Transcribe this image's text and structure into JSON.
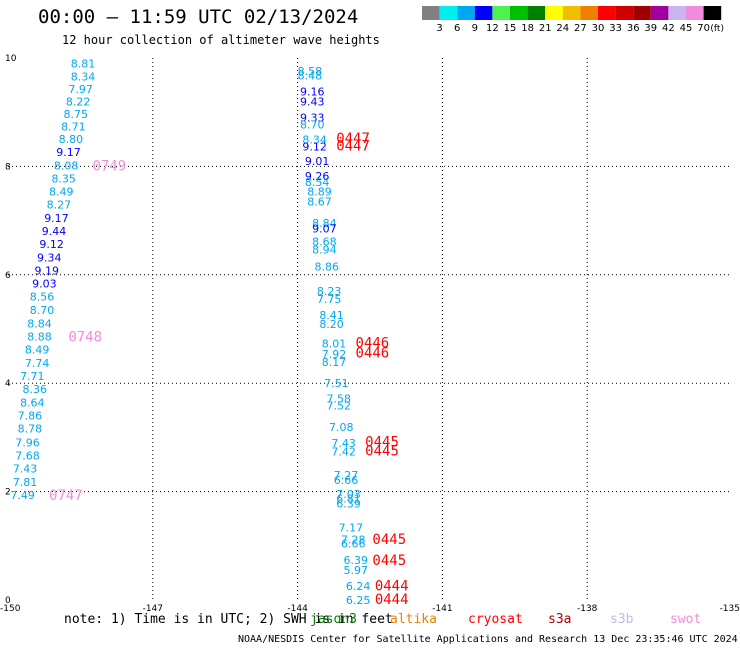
{
  "header": {
    "title": "00:00 – 11:59 UTC 02/13/2024",
    "subtitle": "12 hour collection of altimeter wave heights"
  },
  "colorbar": {
    "labels": [
      "3",
      "6",
      "9",
      "12",
      "15",
      "18",
      "21",
      "24",
      "27",
      "30",
      "33",
      "36",
      "39",
      "42",
      "45",
      "70"
    ],
    "unit": "(ft)",
    "colors": [
      "#808080",
      "#00f0f0",
      "#00a8f0",
      "#0000ff",
      "#50f050",
      "#00c000",
      "#008000",
      "#ffff00",
      "#f0c000",
      "#f08000",
      "#ff0000",
      "#d00000",
      "#a00000",
      "#a000a0",
      "#c8b4f0",
      "#f08cdc",
      "#000000"
    ]
  },
  "footer": {
    "note": "note:  1) Time is in UTC; 2) SWH is in feet",
    "credit": "NOAA/NESDIS Center for Satellite Applications and Research   13 Dec 23:35:46 UTC 2024"
  },
  "satellites": [
    {
      "name": "jason3",
      "color": "#008000",
      "x": 310
    },
    {
      "name": "altika",
      "color": "#f08000",
      "x": 390
    },
    {
      "name": "cryosat",
      "color": "#ff0000",
      "x": 468
    },
    {
      "name": "s3a",
      "color": "#b00000",
      "x": 548
    },
    {
      "name": "s3b",
      "color": "#c8b4f0",
      "x": 610
    },
    {
      "name": "swot",
      "color": "#f08cdc",
      "x": 670
    }
  ],
  "chart_data": {
    "type": "scatter",
    "xlim": [
      -150,
      -135
    ],
    "ylim": [
      0,
      10
    ],
    "xticks": [
      "-150",
      "-147",
      "-144",
      "-141",
      "-138",
      "-135"
    ],
    "yticks": [
      "0",
      "2",
      "4",
      "6",
      "8",
      "10"
    ],
    "grid": true,
    "colors": {
      "sky": "#00a8f0",
      "blue": "#0000ff"
    },
    "points": [
      {
        "x": -148.7,
        "y": 9.9,
        "label": "8.81",
        "c": "sky"
      },
      {
        "x": -148.7,
        "y": 9.66,
        "label": "8.34",
        "c": "sky"
      },
      {
        "x": -148.75,
        "y": 9.43,
        "label": "7.97",
        "c": "sky"
      },
      {
        "x": -148.8,
        "y": 9.2,
        "label": "8.22",
        "c": "sky"
      },
      {
        "x": -148.85,
        "y": 8.97,
        "label": "8.75",
        "c": "sky"
      },
      {
        "x": -148.9,
        "y": 8.74,
        "label": "8.71",
        "c": "sky"
      },
      {
        "x": -148.95,
        "y": 8.51,
        "label": "8.80",
        "c": "sky"
      },
      {
        "x": -149.0,
        "y": 8.27,
        "label": "9.17",
        "c": "blue"
      },
      {
        "x": -149.05,
        "y": 8.02,
        "label": "8.08",
        "c": "sky"
      },
      {
        "x": -149.1,
        "y": 7.78,
        "label": "8.35",
        "c": "sky"
      },
      {
        "x": -149.15,
        "y": 7.54,
        "label": "8.49",
        "c": "sky"
      },
      {
        "x": -149.2,
        "y": 7.3,
        "label": "8.27",
        "c": "sky"
      },
      {
        "x": -149.25,
        "y": 7.05,
        "label": "9.17",
        "c": "blue"
      },
      {
        "x": -149.3,
        "y": 6.81,
        "label": "9.44",
        "c": "blue"
      },
      {
        "x": -149.35,
        "y": 6.57,
        "label": "9.12",
        "c": "blue"
      },
      {
        "x": -149.4,
        "y": 6.32,
        "label": "9.34",
        "c": "blue"
      },
      {
        "x": -149.45,
        "y": 6.08,
        "label": "9.19",
        "c": "blue"
      },
      {
        "x": -149.5,
        "y": 5.84,
        "label": "9.03",
        "c": "blue"
      },
      {
        "x": -149.55,
        "y": 5.6,
        "label": "8.56",
        "c": "sky"
      },
      {
        "x": -149.55,
        "y": 5.35,
        "label": "8.70",
        "c": "sky"
      },
      {
        "x": -149.6,
        "y": 5.1,
        "label": "8.84",
        "c": "sky"
      },
      {
        "x": -149.6,
        "y": 4.86,
        "label": "8.88",
        "c": "sky"
      },
      {
        "x": -149.65,
        "y": 4.62,
        "label": "8.49",
        "c": "sky"
      },
      {
        "x": -149.65,
        "y": 4.37,
        "label": "7.74",
        "c": "sky"
      },
      {
        "x": -149.75,
        "y": 4.13,
        "label": "7.71",
        "c": "sky"
      },
      {
        "x": -149.7,
        "y": 3.89,
        "label": "8.36",
        "c": "sky"
      },
      {
        "x": -149.75,
        "y": 3.64,
        "label": "8.64",
        "c": "sky"
      },
      {
        "x": -149.8,
        "y": 3.4,
        "label": "7.86",
        "c": "sky"
      },
      {
        "x": -149.8,
        "y": 3.16,
        "label": "8.78",
        "c": "sky"
      },
      {
        "x": -149.85,
        "y": 2.91,
        "label": "7.96",
        "c": "sky"
      },
      {
        "x": -149.85,
        "y": 2.67,
        "label": "7.68",
        "c": "sky"
      },
      {
        "x": -149.9,
        "y": 2.43,
        "label": "7.43",
        "c": "sky"
      },
      {
        "x": -149.9,
        "y": 2.18,
        "label": "7.81",
        "c": "sky"
      },
      {
        "x": -149.95,
        "y": 1.94,
        "label": "7.49",
        "c": "sky"
      },
      {
        "x": -144.0,
        "y": 9.76,
        "label": "8.58",
        "c": "sky"
      },
      {
        "x": -144.0,
        "y": 9.68,
        "label": "8.48",
        "c": "sky"
      },
      {
        "x": -143.95,
        "y": 9.38,
        "label": "9.16",
        "c": "blue"
      },
      {
        "x": -143.95,
        "y": 9.2,
        "label": "9.43",
        "c": "blue"
      },
      {
        "x": -143.95,
        "y": 8.9,
        "label": "9.33",
        "c": "blue"
      },
      {
        "x": -143.95,
        "y": 8.77,
        "label": "8.70",
        "c": "sky"
      },
      {
        "x": -143.9,
        "y": 8.5,
        "label": "8.34",
        "c": "sky"
      },
      {
        "x": -143.9,
        "y": 8.37,
        "label": "9.12",
        "c": "blue"
      },
      {
        "x": -143.85,
        "y": 8.1,
        "label": "9.01",
        "c": "blue"
      },
      {
        "x": -143.85,
        "y": 7.82,
        "label": "9.26",
        "c": "blue"
      },
      {
        "x": -143.85,
        "y": 7.71,
        "label": "8.54",
        "c": "sky"
      },
      {
        "x": -143.8,
        "y": 7.54,
        "label": "8.89",
        "c": "sky"
      },
      {
        "x": -143.8,
        "y": 7.35,
        "label": "8.67",
        "c": "sky"
      },
      {
        "x": -143.7,
        "y": 6.96,
        "label": "8.84",
        "c": "sky"
      },
      {
        "x": -143.7,
        "y": 6.85,
        "label": "9.07",
        "c": "blue"
      },
      {
        "x": -143.7,
        "y": 6.61,
        "label": "8.68",
        "c": "sky"
      },
      {
        "x": -143.7,
        "y": 6.47,
        "label": "8.94",
        "c": "sky"
      },
      {
        "x": -143.65,
        "y": 6.15,
        "label": "8.86",
        "c": "sky"
      },
      {
        "x": -143.6,
        "y": 5.7,
        "label": "8.23",
        "c": "sky"
      },
      {
        "x": -143.6,
        "y": 5.55,
        "label": "7.75",
        "c": "sky"
      },
      {
        "x": -143.55,
        "y": 5.26,
        "label": "8.41",
        "c": "sky"
      },
      {
        "x": -143.55,
        "y": 5.09,
        "label": "8.20",
        "c": "sky"
      },
      {
        "x": -143.5,
        "y": 4.73,
        "label": "8.01",
        "c": "sky"
      },
      {
        "x": -143.5,
        "y": 4.54,
        "label": "7.92",
        "c": "sky"
      },
      {
        "x": -143.5,
        "y": 4.39,
        "label": "8.17",
        "c": "sky"
      },
      {
        "x": -143.45,
        "y": 4.0,
        "label": "7.51",
        "c": "sky"
      },
      {
        "x": -143.4,
        "y": 3.72,
        "label": "7.58",
        "c": "sky"
      },
      {
        "x": -143.4,
        "y": 3.59,
        "label": "7.52",
        "c": "sky"
      },
      {
        "x": -143.35,
        "y": 3.19,
        "label": "7.08",
        "c": "sky"
      },
      {
        "x": -143.3,
        "y": 2.9,
        "label": "7.43",
        "c": "sky"
      },
      {
        "x": -143.3,
        "y": 2.74,
        "label": "7.42",
        "c": "sky"
      },
      {
        "x": -143.25,
        "y": 2.31,
        "label": "7.27",
        "c": "sky"
      },
      {
        "x": -143.25,
        "y": 2.21,
        "label": "6.66",
        "c": "sky"
      },
      {
        "x": -143.2,
        "y": 1.96,
        "label": "7.03",
        "c": "sky"
      },
      {
        "x": -143.2,
        "y": 1.87,
        "label": "6.81",
        "c": "sky"
      },
      {
        "x": -143.2,
        "y": 1.78,
        "label": "6.39",
        "c": "sky"
      },
      {
        "x": -143.15,
        "y": 1.34,
        "label": "7.17",
        "c": "sky"
      },
      {
        "x": -143.1,
        "y": 1.12,
        "label": "7.28",
        "c": "sky"
      },
      {
        "x": -143.1,
        "y": 1.04,
        "label": "6.66",
        "c": "sky"
      },
      {
        "x": -143.05,
        "y": 0.74,
        "label": "6.39",
        "c": "sky"
      },
      {
        "x": -143.05,
        "y": 0.55,
        "label": "5.97",
        "c": "sky"
      },
      {
        "x": -143.0,
        "y": 0.26,
        "label": "6.24",
        "c": "sky"
      },
      {
        "x": -143.0,
        "y": 0.0,
        "label": "6.25",
        "c": "sky"
      }
    ],
    "time_labels": [
      {
        "x": -148.25,
        "y": 8.02,
        "label": "0749",
        "color": "#f08cdc"
      },
      {
        "x": -148.75,
        "y": 4.86,
        "label": "0748",
        "color": "#f08cdc"
      },
      {
        "x": -149.15,
        "y": 1.94,
        "label": "0747",
        "color": "#f08cdc"
      },
      {
        "x": -143.2,
        "y": 8.52,
        "label": "0447",
        "color": "#ff0000"
      },
      {
        "x": -143.2,
        "y": 8.39,
        "label": "0447",
        "color": "#ff0000"
      },
      {
        "x": -142.8,
        "y": 4.75,
        "label": "0446",
        "color": "#ff0000"
      },
      {
        "x": -142.8,
        "y": 4.57,
        "label": "0446",
        "color": "#ff0000"
      },
      {
        "x": -142.6,
        "y": 2.92,
        "label": "0445",
        "color": "#ff0000"
      },
      {
        "x": -142.6,
        "y": 2.76,
        "label": "0445",
        "color": "#ff0000"
      },
      {
        "x": -142.45,
        "y": 1.13,
        "label": "0445",
        "color": "#ff0000"
      },
      {
        "x": -142.45,
        "y": 0.74,
        "label": "0445",
        "color": "#ff0000"
      },
      {
        "x": -142.4,
        "y": 0.27,
        "label": "0444",
        "color": "#ff0000"
      },
      {
        "x": -142.4,
        "y": 0.02,
        "label": "0444",
        "color": "#ff0000"
      }
    ]
  }
}
